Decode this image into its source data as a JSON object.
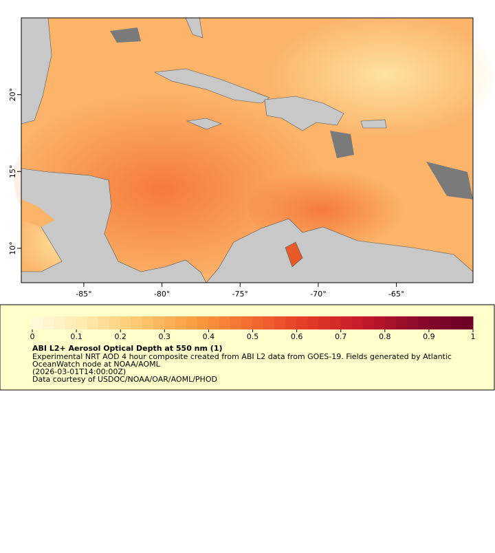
{
  "chart_data": {
    "type": "map",
    "xlim": [
      -89,
      -60.1
    ],
    "ylim": [
      7.76,
      25
    ],
    "xticks": [
      {
        "value": -85,
        "label": "-85°"
      },
      {
        "value": -80,
        "label": "-80°"
      },
      {
        "value": -75,
        "label": "-75°"
      },
      {
        "value": -70,
        "label": "-70°"
      },
      {
        "value": -65,
        "label": "-65°"
      }
    ],
    "yticks": [
      {
        "value": 10,
        "label": "10°"
      },
      {
        "value": 15,
        "label": "15°"
      },
      {
        "value": 20,
        "label": "20°"
      }
    ],
    "colorbar": {
      "lim": [
        0,
        1
      ],
      "ticks": [
        0,
        0.1,
        0.2,
        0.3,
        0.4,
        0.5,
        0.6,
        0.7,
        0.8,
        0.9,
        1
      ],
      "colors": [
        "#fffbe0",
        "#fee9a8",
        "#fdc56c",
        "#fb9a40",
        "#f46a30",
        "#e43a26",
        "#c41b2a",
        "#8b0a2b",
        "#6b0026"
      ]
    },
    "legend": {
      "title": "ABI L2+ Aerosol Optical Depth at 550 nm (1)",
      "lines": [
        "Experimental NRT AOD 4 hour composite created from ABI L2 data from GOES-19. Fields generated by Atlantic",
        "OceanWatch node at NOAA/AOML",
        "(2026-03-01T14:00:00Z)",
        "Data courtesy of USDOC/NOAA/OAR/AOML/PHOD"
      ]
    }
  }
}
